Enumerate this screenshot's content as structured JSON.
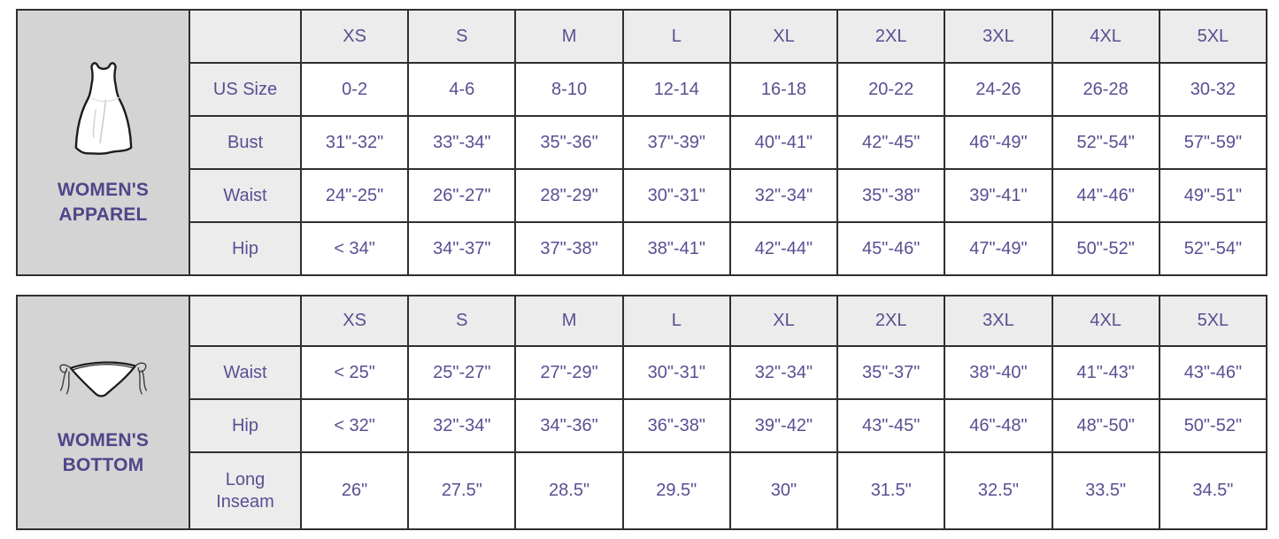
{
  "colors": {
    "value_text": "#575092",
    "panel_label_text": "#4e4689",
    "table_border": "#2f2f2f",
    "header_cell_bg": "#ececec",
    "label_cell_bg": "#ececec",
    "panel_bg": "#d4d4d4",
    "value_cell_bg": "#ffffff"
  },
  "chart_data": [
    {
      "type": "table",
      "title": "WOMEN'S APPAREL",
      "title_lines": [
        "WOMEN'S",
        "APPAREL"
      ],
      "icon": "dress-icon",
      "sizes": [
        "XS",
        "S",
        "M",
        "L",
        "XL",
        "2XL",
        "3XL",
        "4XL",
        "5XL"
      ],
      "row_labels": [
        "US Size",
        "Bust",
        "Waist",
        "Hip"
      ],
      "rows": [
        [
          "0-2",
          "4-6",
          "8-10",
          "12-14",
          "16-18",
          "20-22",
          "24-26",
          "26-28",
          "30-32"
        ],
        [
          "31\"-32\"",
          "33\"-34\"",
          "35\"-36\"",
          "37\"-39\"",
          "40\"-41\"",
          "42\"-45\"",
          "46\"-49\"",
          "52\"-54\"",
          "57\"-59\""
        ],
        [
          "24\"-25\"",
          "26\"-27\"",
          "28\"-29\"",
          "30\"-31\"",
          "32\"-34\"",
          "35\"-38\"",
          "39\"-41\"",
          "44\"-46\"",
          "49\"-51\""
        ],
        [
          "< 34\"",
          "34\"-37\"",
          "37\"-38\"",
          "38\"-41\"",
          "42\"-44\"",
          "45\"-46\"",
          "47\"-49\"",
          "50\"-52\"",
          "52\"-54\""
        ]
      ]
    },
    {
      "type": "table",
      "title": "WOMEN'S BOTTOM",
      "title_lines": [
        "WOMEN'S",
        "BOTTOM"
      ],
      "icon": "bikini-bottom-icon",
      "sizes": [
        "XS",
        "S",
        "M",
        "L",
        "XL",
        "2XL",
        "3XL",
        "4XL",
        "5XL"
      ],
      "row_labels": [
        "Waist",
        "Hip",
        "Long Inseam"
      ],
      "rows": [
        [
          "< 25\"",
          "25\"-27\"",
          "27\"-29\"",
          "30\"-31\"",
          "32\"-34\"",
          "35\"-37\"",
          "38\"-40\"",
          "41\"-43\"",
          "43\"-46\""
        ],
        [
          "< 32\"",
          "32\"-34\"",
          "34\"-36\"",
          "36\"-38\"",
          "39\"-42\"",
          "43\"-45\"",
          "46\"-48\"",
          "48\"-50\"",
          "50\"-52\""
        ],
        [
          "26\"",
          "27.5\"",
          "28.5\"",
          "29.5\"",
          "30\"",
          "31.5\"",
          "32.5\"",
          "33.5\"",
          "34.5\""
        ]
      ]
    }
  ]
}
